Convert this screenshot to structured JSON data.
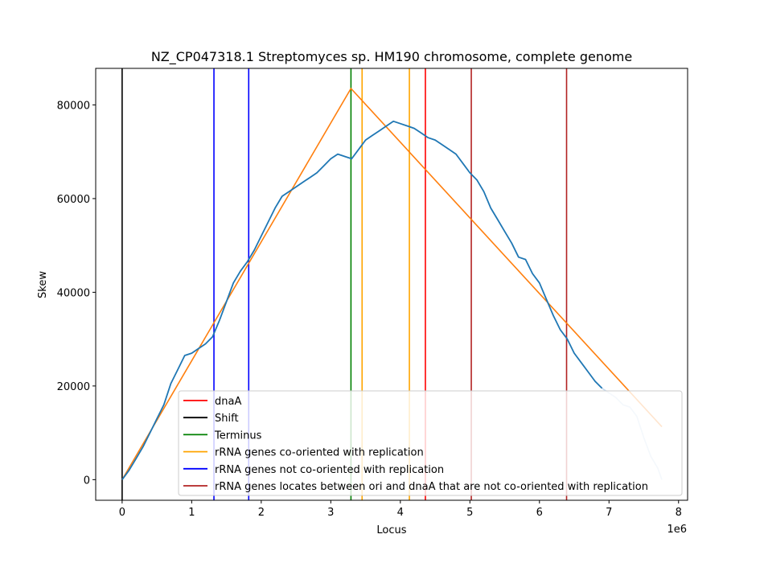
{
  "chart_data": {
    "type": "line",
    "title": "NZ_CP047318.1 Streptomyces sp. HM190 chromosome, complete genome",
    "xlabel": "Locus",
    "ylabel": "Skew",
    "x_offset_label": "1e6",
    "xlim": [
      -380000,
      8130000
    ],
    "ylim": [
      -4400,
      87800
    ],
    "x_ticks": [
      0,
      1000000,
      2000000,
      3000000,
      4000000,
      5000000,
      6000000,
      7000000,
      8000000
    ],
    "x_tick_labels": [
      "0",
      "1",
      "2",
      "3",
      "4",
      "5",
      "6",
      "7",
      "8"
    ],
    "y_ticks": [
      0,
      20000,
      40000,
      60000,
      80000
    ],
    "y_tick_labels": [
      "0",
      "20000",
      "40000",
      "60000",
      "80000"
    ],
    "grid": false,
    "legend_position": "lower-right",
    "skew_series": {
      "color": "#1f77b4",
      "x": [
        0,
        100000,
        200000,
        300000,
        400000,
        500000,
        600000,
        700000,
        800000,
        900000,
        1000000,
        1100000,
        1200000,
        1300000,
        1400000,
        1500000,
        1600000,
        1700000,
        1800000,
        1900000,
        2000000,
        2100000,
        2200000,
        2300000,
        2400000,
        2500000,
        2600000,
        2700000,
        2800000,
        2900000,
        3000000,
        3100000,
        3200000,
        3300000,
        3400000,
        3500000,
        3600000,
        3700000,
        3800000,
        3900000,
        4000000,
        4100000,
        4200000,
        4300000,
        4400000,
        4500000,
        4600000,
        4700000,
        4800000,
        4900000,
        5000000,
        5100000,
        5200000,
        5300000,
        5400000,
        5500000,
        5600000,
        5700000,
        5800000,
        5900000,
        6000000,
        6100000,
        6200000,
        6300000,
        6400000,
        6500000,
        6600000,
        6700000,
        6800000,
        6900000
      ],
      "y": [
        0,
        2000,
        4500,
        7000,
        10000,
        13000,
        16000,
        20500,
        23500,
        26500,
        27000,
        28000,
        29000,
        30500,
        34000,
        38000,
        42000,
        44500,
        46500,
        49000,
        52000,
        55000,
        58000,
        60500,
        61500,
        62500,
        63500,
        64500,
        65500,
        67000,
        68500,
        69500,
        69000,
        68500,
        70500,
        72500,
        73500,
        74500,
        75500,
        76500,
        76000,
        75500,
        75000,
        74000,
        73000,
        72500,
        71500,
        70500,
        69500,
        67500,
        65500,
        64000,
        61500,
        58000,
        55500,
        53000,
        50500,
        47500,
        47000,
        44000,
        42000,
        38500,
        35000,
        32000,
        30000,
        27000,
        25000,
        23000,
        21000,
        19500
      ]
    },
    "skew_tail": {
      "color": "#c6dbef",
      "x": [
        6900000,
        7000000,
        7100000,
        7200000,
        7300000,
        7400000,
        7500000,
        7600000,
        7700000,
        7760000
      ],
      "y": [
        19500,
        18500,
        17500,
        16000,
        15500,
        13500,
        9000,
        5000,
        2500,
        0
      ]
    },
    "fit_series": {
      "color": "#ff7f0e",
      "x": [
        0,
        3290000,
        7760000
      ],
      "y": [
        0,
        83500,
        11300
      ]
    },
    "vertical_lines": [
      {
        "label": "Shift",
        "color": "#000000",
        "x": [
          0
        ]
      },
      {
        "label": "rRNA genes not co-oriented with replication",
        "color": "#0000ff",
        "x": [
          1320000,
          1820000
        ]
      },
      {
        "label": "Terminus",
        "color": "#008000",
        "x": [
          3290000
        ]
      },
      {
        "label": "rRNA genes co-oriented with replication",
        "color": "#ffa500",
        "x": [
          3450000,
          4130000
        ]
      },
      {
        "label": "dnaA",
        "color": "#ff0000",
        "x": [
          4360000
        ]
      },
      {
        "label": "rRNA genes locates between ori and dnaA that are not co-oriented with replication",
        "color": "#b22222",
        "x": [
          5020000,
          6390000
        ]
      }
    ],
    "legend": [
      {
        "label": "dnaA",
        "color": "#ff0000"
      },
      {
        "label": "Shift",
        "color": "#000000"
      },
      {
        "label": "Terminus",
        "color": "#008000"
      },
      {
        "label": "rRNA genes co-oriented with replication",
        "color": "#ffa500"
      },
      {
        "label": "rRNA genes not co-oriented with replication",
        "color": "#0000ff"
      },
      {
        "label": "rRNA genes locates between ori and dnaA that are not co-oriented with replication",
        "color": "#b22222"
      }
    ]
  }
}
